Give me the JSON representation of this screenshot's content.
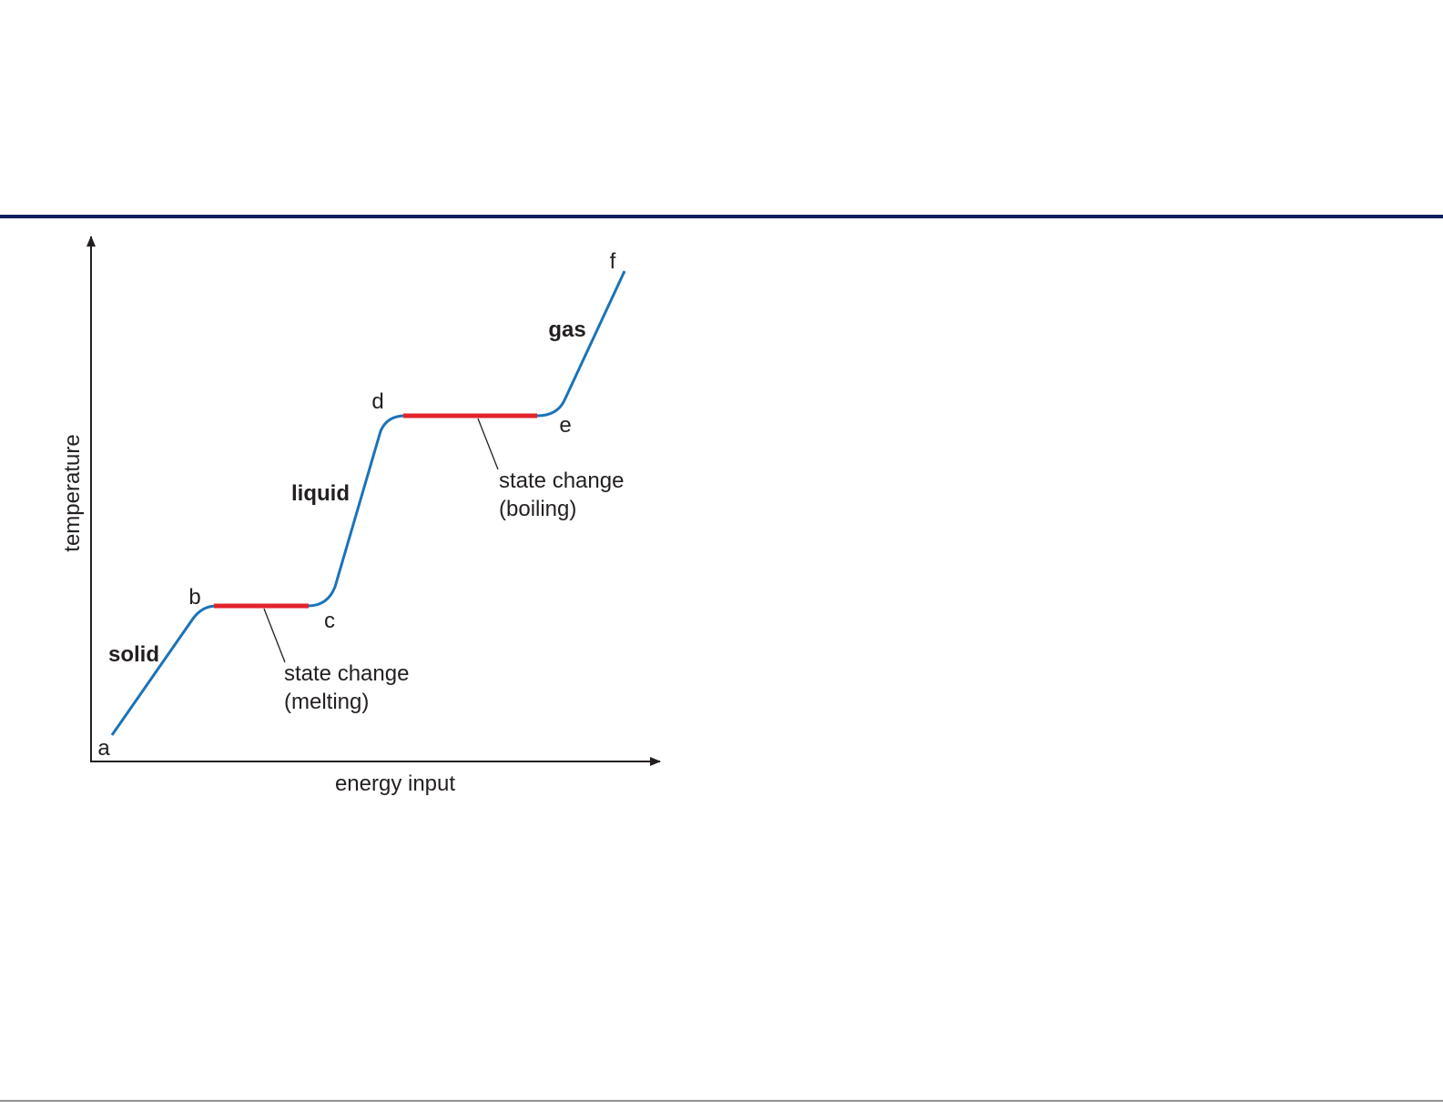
{
  "diagram": {
    "axes": {
      "x_label": "energy input",
      "y_label": "temperature"
    },
    "points": [
      "a",
      "b",
      "c",
      "d",
      "e",
      "f"
    ],
    "phases": [
      "solid",
      "liquid",
      "gas"
    ],
    "annotations": [
      {
        "lines": [
          "state change",
          "(melting)"
        ]
      },
      {
        "lines": [
          "state change",
          "(boiling)"
        ]
      }
    ]
  }
}
